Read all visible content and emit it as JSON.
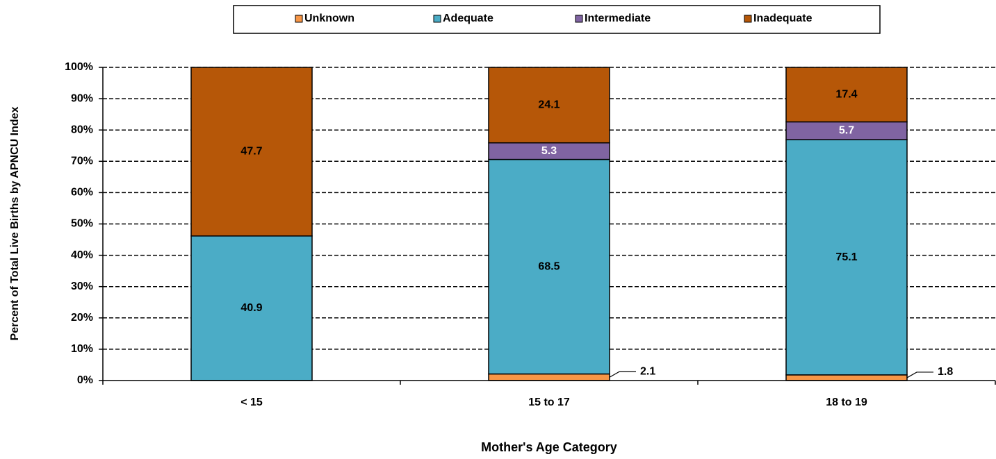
{
  "chart_data": {
    "type": "bar",
    "stacked": "percent",
    "x_label": "Mother's Age Category",
    "y_label": "Percent of Total Live Births by APNCU Index",
    "categories": [
      "< 15",
      "15 to 17",
      "18 to 19"
    ],
    "series": [
      {
        "name": "Unknown",
        "color": "#f79646",
        "values": [
          null,
          2.1,
          1.8
        ]
      },
      {
        "name": "Adequate",
        "color": "#4bacc6",
        "values": [
          40.9,
          68.5,
          75.1
        ]
      },
      {
        "name": "Intermediate",
        "color": "#8064a2",
        "values": [
          null,
          5.3,
          5.7
        ]
      },
      {
        "name": "Inadequate",
        "color": "#b65708",
        "values": [
          47.7,
          24.1,
          17.4
        ]
      }
    ],
    "ylim": [
      0,
      100
    ],
    "yticks": [
      {
        "value": 0,
        "label": "0%"
      },
      {
        "value": 10,
        "label": "10%"
      },
      {
        "value": 20,
        "label": "20%"
      },
      {
        "value": 30,
        "label": "30%"
      },
      {
        "value": 40,
        "label": "40%"
      },
      {
        "value": 50,
        "label": "50%"
      },
      {
        "value": 60,
        "label": "60%"
      },
      {
        "value": 70,
        "label": "70%"
      },
      {
        "value": 80,
        "label": "80%"
      },
      {
        "value": 90,
        "label": "90%"
      },
      {
        "value": 100,
        "label": "100%"
      }
    ],
    "grid": true,
    "legend": "top"
  }
}
